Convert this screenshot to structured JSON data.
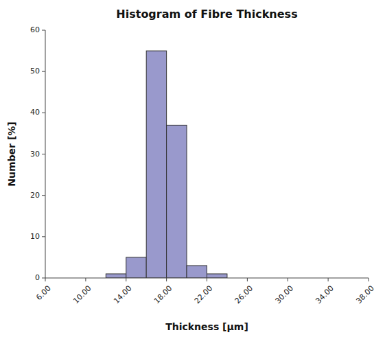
{
  "chart_data": {
    "type": "histogram",
    "title": "Histogram of Fibre Thickness",
    "xlabel": "Thickness  [μm]",
    "ylabel": "Number [%]",
    "bins": [
      12,
      14,
      16,
      18,
      20,
      22,
      24
    ],
    "values": [
      1,
      5,
      55,
      37,
      3,
      1
    ],
    "color": "#9999cc",
    "xlim": [
      6,
      38
    ],
    "ylim": [
      0,
      60
    ],
    "xticks": [
      {
        "value": 6,
        "label": "6.00"
      },
      {
        "value": 10,
        "label": "10.00"
      },
      {
        "value": 14,
        "label": "14.00"
      },
      {
        "value": 18,
        "label": "18.00"
      },
      {
        "value": 22,
        "label": "22.00"
      },
      {
        "value": 26,
        "label": "26.00"
      },
      {
        "value": 30,
        "label": "30.00"
      },
      {
        "value": 34,
        "label": "34.00"
      },
      {
        "value": 38,
        "label": "38.00"
      }
    ],
    "yticks": [
      0,
      10,
      20,
      30,
      40,
      50,
      60
    ],
    "grid": false
  }
}
